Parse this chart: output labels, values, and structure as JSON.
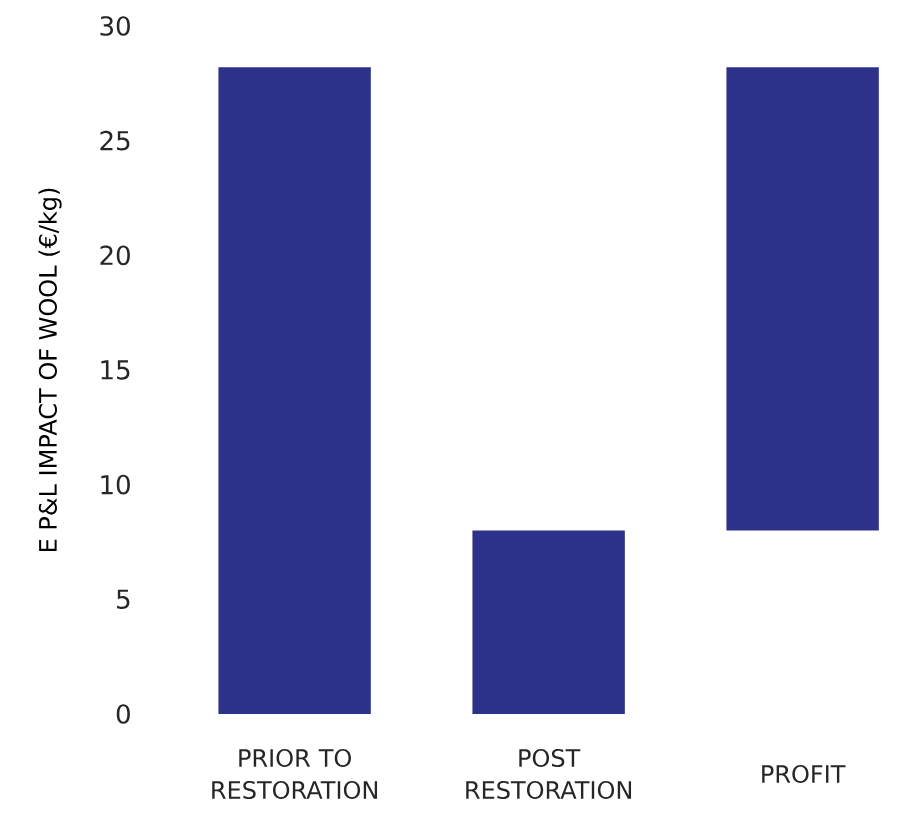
{
  "chart_data": {
    "type": "bar",
    "ylabel": "E P&L IMPACT OF WOOL (€/kg)",
    "categories": [
      "PRIOR TO RESTORATION",
      "POST RESTORATION",
      "PROFIT"
    ],
    "values": [
      28.2,
      8.0,
      20.2
    ],
    "base": [
      0,
      0,
      8.0
    ],
    "color": "#2d318a",
    "ylim": [
      0,
      30
    ],
    "yticks": [
      0,
      5,
      10,
      15,
      20,
      25,
      30
    ]
  }
}
